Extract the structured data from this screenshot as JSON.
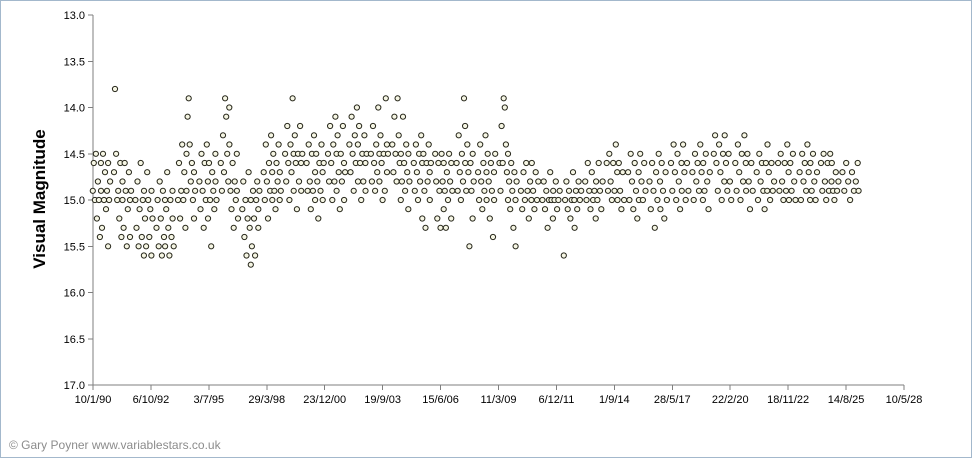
{
  "footer": {
    "copyright": "© Gary Poyner www.variablestars.co.uk"
  },
  "colors": {
    "frame_border": "#a3b8cc",
    "axis_line": "#7f7f7f",
    "tick_text": "#000000",
    "copyright_text": "#8c8c8c",
    "background": "#ffffff",
    "marker_stroke": "#26261a",
    "marker_fill": "#f6f6e4"
  },
  "chart_data": {
    "type": "scatter",
    "title": "",
    "xlabel": "",
    "ylabel": "Visual Magnitude",
    "legend": "none",
    "grid": false,
    "y_axis": {
      "min": 13.0,
      "max": 17.0,
      "step": 0.5,
      "inverted_magnitude_scale": true,
      "tick_labels": [
        "13.0",
        "13.5",
        "14.0",
        "14.5",
        "15.0",
        "15.5",
        "16.0",
        "16.5",
        "17.0"
      ]
    },
    "x_axis": {
      "min_day": 0,
      "max_day": 14000,
      "tick_interval_days": 1000,
      "tick_labels": [
        "10/1/90",
        "6/10/92",
        "3/7/95",
        "29/3/98",
        "23/12/00",
        "19/9/03",
        "15/6/06",
        "11/3/09",
        "6/12/11",
        "1/9/14",
        "28/5/17",
        "22/2/20",
        "18/11/22",
        "14/8/25",
        "10/5/28"
      ]
    },
    "marker": {
      "shape": "circle",
      "radius": 2.6,
      "stroke": "#26261a",
      "fill": "#f6f6e4"
    },
    "season_span_days": 310,
    "series": [
      {
        "name": "observations",
        "seasons": [
          {
            "start": 5,
            "mags": [
              14.9,
              14.6,
              15.0,
              14.5,
              15.2,
              14.8,
              15.0,
              15.4,
              14.6,
              14.9,
              15.3,
              14.5,
              15.0,
              14.7,
              15.1,
              14.9,
              15.5,
              14.6,
              15.0,
              14.8
            ]
          },
          {
            "start": 370,
            "mags": [
              14.7,
              13.8,
              14.5,
              15.0,
              14.9,
              15.2,
              14.6,
              15.4,
              14.8,
              15.0,
              15.3,
              14.6,
              14.9,
              15.5,
              15.1,
              14.7,
              15.0,
              15.4,
              14.9
            ]
          },
          {
            "start": 740,
            "mags": [
              15.0,
              15.3,
              14.8,
              15.5,
              15.1,
              14.6,
              15.4,
              15.0,
              15.6,
              14.9,
              15.2,
              15.5,
              14.7,
              15.0,
              15.4,
              15.1,
              15.6,
              14.9,
              15.2
            ]
          },
          {
            "start": 1105,
            "mags": [
              15.3,
              15.0,
              15.5,
              14.8,
              15.2,
              15.6,
              14.9,
              15.4,
              15.0,
              15.5,
              15.1,
              14.7,
              15.3,
              15.6,
              15.0,
              15.4,
              14.9,
              15.2,
              15.5
            ]
          },
          {
            "start": 1475,
            "mags": [
              15.0,
              14.6,
              15.2,
              14.9,
              14.4,
              15.0,
              14.7,
              15.3,
              14.5,
              14.9,
              14.1,
              13.9,
              14.4,
              14.8,
              14.6,
              15.0,
              15.2,
              14.7,
              14.9
            ]
          },
          {
            "start": 1845,
            "mags": [
              14.8,
              15.1,
              14.5,
              14.9,
              15.3,
              14.6,
              15.0,
              14.4,
              14.8,
              15.2,
              14.6,
              15.0,
              15.5,
              14.7,
              14.9,
              15.1,
              14.5,
              14.8,
              15.0
            ]
          },
          {
            "start": 2215,
            "mags": [
              14.6,
              14.9,
              14.3,
              14.7,
              13.9,
              14.1,
              14.5,
              14.8,
              14.0,
              14.4,
              14.9,
              15.1,
              14.6,
              15.3,
              14.8,
              15.0,
              14.5,
              14.9,
              15.2
            ]
          },
          {
            "start": 2585,
            "mags": [
              15.1,
              14.8,
              15.4,
              15.0,
              15.6,
              15.2,
              14.7,
              15.3,
              15.7,
              15.0,
              15.5,
              14.9,
              15.2,
              15.6,
              15.0,
              14.8,
              15.3,
              15.1,
              14.9
            ]
          },
          {
            "start": 2955,
            "mags": [
              14.7,
              15.0,
              14.4,
              14.8,
              15.2,
              14.6,
              14.9,
              14.3,
              14.7,
              15.0,
              14.5,
              14.9,
              15.1,
              14.6,
              14.8,
              14.4,
              15.0,
              14.7,
              14.9
            ]
          },
          {
            "start": 3325,
            "mags": [
              14.5,
              14.8,
              14.2,
              14.6,
              15.0,
              14.4,
              14.7,
              13.9,
              14.5,
              14.9,
              14.3,
              14.6,
              15.1,
              14.5,
              14.8,
              14.2,
              14.6,
              14.9,
              14.5
            ]
          },
          {
            "start": 3695,
            "mags": [
              14.6,
              14.9,
              14.4,
              14.8,
              15.1,
              14.5,
              14.9,
              14.3,
              14.7,
              15.0,
              14.5,
              14.8,
              15.2,
              14.6,
              14.9,
              14.4,
              14.7,
              15.0,
              14.6
            ]
          },
          {
            "start": 4065,
            "mags": [
              14.5,
              14.8,
              14.2,
              14.6,
              15.0,
              14.4,
              14.8,
              14.1,
              14.5,
              14.9,
              14.3,
              14.7,
              15.1,
              14.5,
              14.8,
              14.2,
              14.6,
              15.0,
              14.7
            ]
          },
          {
            "start": 4435,
            "mags": [
              14.4,
              14.7,
              14.1,
              14.5,
              14.9,
              14.3,
              14.6,
              14.0,
              14.4,
              14.8,
              14.2,
              14.6,
              15.0,
              14.5,
              14.8,
              14.3,
              14.6,
              14.9,
              14.5
            ]
          },
          {
            "start": 4805,
            "mags": [
              14.5,
              14.8,
              14.2,
              14.6,
              14.9,
              14.4,
              14.7,
              14.0,
              14.5,
              14.8,
              14.3,
              14.6,
              15.0,
              14.5,
              14.9,
              13.9,
              14.4,
              14.7,
              14.5
            ]
          },
          {
            "start": 5175,
            "mags": [
              14.4,
              14.7,
              14.1,
              14.5,
              14.8,
              13.9,
              14.3,
              14.6,
              15.0,
              14.5,
              14.8,
              14.1,
              14.6,
              14.9,
              14.4,
              14.7,
              15.1,
              14.5,
              14.8
            ]
          },
          {
            "start": 5545,
            "mags": [
              14.6,
              14.9,
              14.4,
              14.7,
              15.0,
              14.5,
              14.8,
              14.3,
              14.6,
              15.2,
              14.5,
              14.9,
              15.3,
              14.6,
              14.8,
              14.4,
              14.7,
              15.0,
              14.6
            ]
          },
          {
            "start": 5915,
            "mags": [
              14.5,
              14.8,
              15.2,
              14.6,
              14.9,
              15.3,
              14.5,
              14.8,
              15.1,
              14.6,
              14.9,
              15.3,
              14.7,
              15.0,
              14.5,
              14.8,
              15.2,
              14.6,
              14.9
            ]
          },
          {
            "start": 6285,
            "mags": [
              14.6,
              14.9,
              14.3,
              14.7,
              15.0,
              14.5,
              14.8,
              13.9,
              14.2,
              14.6,
              14.9,
              14.4,
              14.7,
              15.5,
              14.6,
              14.9,
              15.2,
              14.5,
              14.8
            ]
          },
          {
            "start": 6655,
            "mags": [
              14.7,
              15.0,
              14.4,
              14.8,
              15.1,
              14.6,
              14.9,
              14.3,
              14.7,
              15.0,
              14.5,
              14.8,
              15.2,
              14.6,
              14.9,
              15.4,
              14.7,
              15.0,
              14.5
            ]
          },
          {
            "start": 7025,
            "mags": [
              14.6,
              14.9,
              14.2,
              14.6,
              13.9,
              14.0,
              14.4,
              14.7,
              15.0,
              14.5,
              14.8,
              15.1,
              14.6,
              14.9,
              15.3,
              14.7,
              15.0,
              15.5,
              14.8
            ]
          },
          {
            "start": 7395,
            "mags": [
              14.9,
              15.1,
              14.7,
              15.0,
              14.6,
              14.9,
              15.2,
              14.8,
              15.0,
              14.6,
              14.9,
              15.1,
              14.7,
              15.0,
              14.8
            ]
          },
          {
            "start": 7765,
            "mags": [
              15.0,
              14.8,
              15.1,
              14.9,
              15.3,
              15.0,
              14.7,
              15.0,
              15.2,
              14.9,
              15.0,
              14.8,
              15.1,
              15.0,
              14.9
            ]
          },
          {
            "start": 8135,
            "mags": [
              15.6,
              15.0,
              14.8,
              15.1,
              14.9,
              15.2,
              15.0,
              14.7,
              15.0,
              15.3,
              14.9,
              15.1,
              14.8,
              15.0,
              14.9
            ]
          },
          {
            "start": 8505,
            "mags": [
              14.8,
              15.0,
              14.6,
              14.9,
              15.1,
              14.7,
              15.0,
              14.9,
              15.2,
              14.8,
              15.0,
              14.6,
              14.9,
              15.1,
              14.8
            ]
          },
          {
            "start": 8875,
            "mags": [
              14.6,
              14.9,
              14.5,
              14.8,
              15.0,
              14.6,
              14.9,
              14.4,
              14.7,
              15.0,
              14.6,
              14.9,
              15.1,
              14.7,
              15.0
            ]
          },
          {
            "start": 9245,
            "mags": [
              14.7,
              15.0,
              14.5,
              14.8,
              15.1,
              14.6,
              14.9,
              15.2,
              14.7,
              15.0,
              14.5,
              14.8,
              15.0,
              14.6,
              14.9
            ]
          },
          {
            "start": 9615,
            "mags": [
              14.8,
              15.1,
              14.6,
              14.9,
              15.3,
              14.7,
              15.0,
              14.5,
              14.8,
              15.1,
              14.6,
              14.9,
              15.2,
              14.7,
              15.0
            ]
          },
          {
            "start": 9985,
            "mags": [
              14.6,
              14.9,
              14.4,
              14.7,
              15.0,
              14.5,
              14.8,
              15.1,
              14.6,
              14.9,
              14.4,
              14.7,
              15.0,
              14.6,
              14.9
            ]
          },
          {
            "start": 10355,
            "mags": [
              14.7,
              15.0,
              14.5,
              14.8,
              14.6,
              14.9,
              14.4,
              14.7,
              15.0,
              14.6,
              14.9,
              14.5,
              14.8,
              15.1,
              14.7
            ]
          },
          {
            "start": 10725,
            "mags": [
              14.5,
              14.3,
              14.6,
              14.9,
              14.4,
              14.7,
              15.0,
              14.5,
              14.8,
              14.3,
              14.6,
              14.9,
              14.5,
              14.8,
              15.0
            ]
          },
          {
            "start": 11095,
            "mags": [
              14.6,
              14.9,
              14.4,
              14.7,
              15.0,
              14.5,
              14.8,
              14.3,
              14.6,
              14.9,
              14.5,
              14.8,
              15.1,
              14.6,
              14.9
            ]
          },
          {
            "start": 11465,
            "mags": [
              14.7,
              15.0,
              14.5,
              14.8,
              14.6,
              14.9,
              15.1,
              14.6,
              14.9,
              14.4,
              14.7,
              15.0,
              14.6,
              14.9,
              14.8
            ]
          },
          {
            "start": 11835,
            "mags": [
              14.6,
              14.9,
              14.5,
              14.8,
              15.0,
              14.6,
              14.9,
              14.4,
              14.7,
              15.0,
              14.6,
              14.9,
              14.5,
              14.8,
              15.0
            ]
          },
          {
            "start": 12205,
            "mags": [
              14.7,
              15.0,
              14.5,
              14.8,
              14.6,
              14.9,
              14.4,
              14.7,
              15.0,
              14.6,
              14.9,
              14.5,
              14.8,
              15.0,
              14.7
            ]
          },
          {
            "start": 12575,
            "mags": [
              14.6,
              14.9,
              14.5,
              14.8,
              15.0,
              14.6,
              14.9,
              14.5,
              14.8,
              14.6,
              14.9,
              15.0,
              14.7,
              14.9,
              14.8
            ]
          },
          {
            "start": 12945,
            "mags": [
              14.7,
              14.9,
              14.6,
              14.8,
              15.0,
              14.7,
              14.9,
              14.8,
              14.6,
              14.9
            ]
          }
        ]
      }
    ]
  }
}
